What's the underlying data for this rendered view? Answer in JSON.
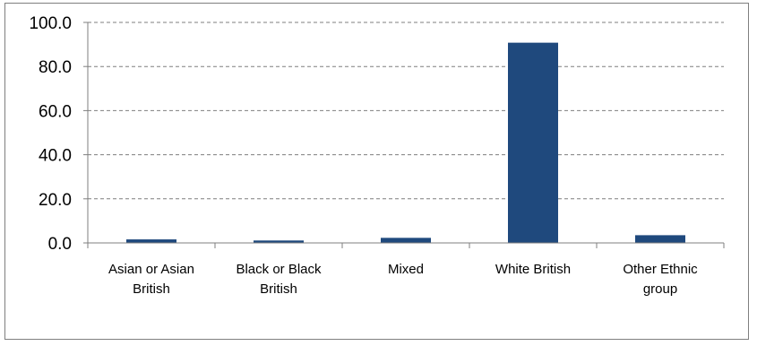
{
  "chart_data": {
    "type": "bar",
    "categories": [
      [
        "Asian or Asian",
        "British"
      ],
      [
        "Black or Black",
        "British"
      ],
      [
        "Mixed"
      ],
      [
        "White British"
      ],
      [
        "Other Ethnic",
        "group"
      ]
    ],
    "values": [
      1.6,
      1.1,
      2.3,
      90.8,
      3.5
    ],
    "ylim": [
      0,
      100
    ],
    "yticks": [
      "0.0",
      "20.0",
      "40.0",
      "60.0",
      "80.0",
      "100.0"
    ],
    "ytick_values": [
      0,
      20,
      40,
      60,
      80,
      100
    ],
    "grid": true,
    "bar_color": "#1f497d",
    "grid_color": "#7f7f7f"
  }
}
